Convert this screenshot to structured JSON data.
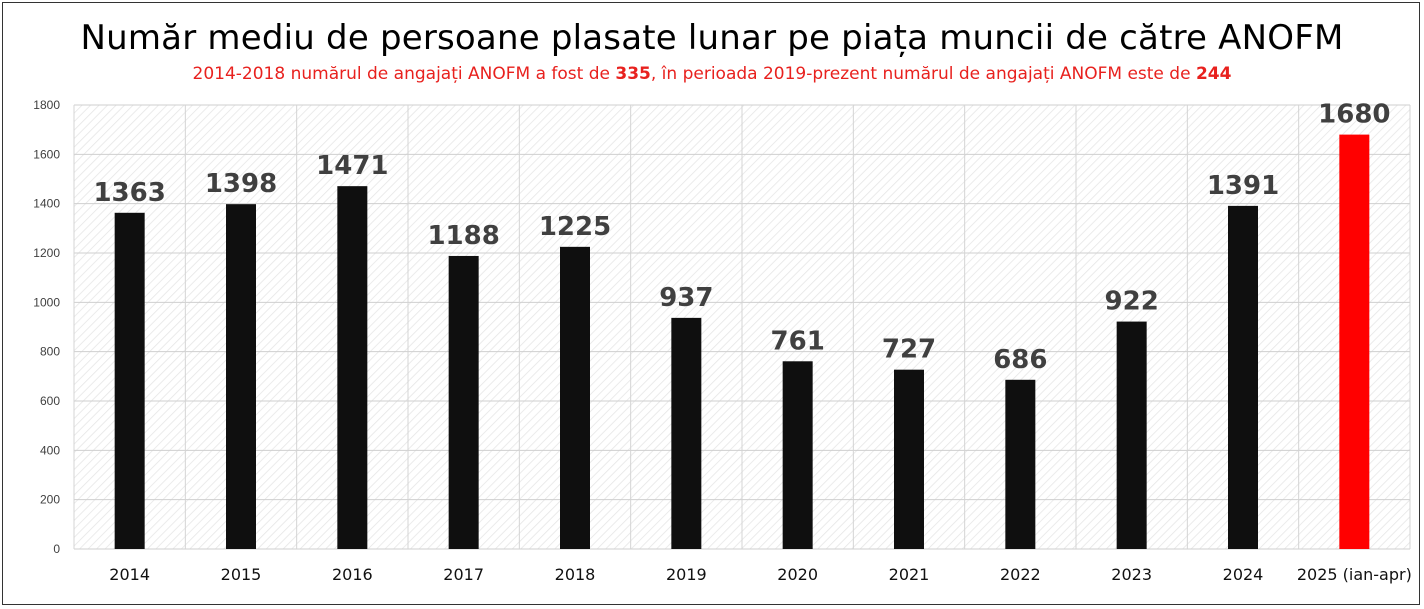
{
  "chart_data": {
    "type": "bar",
    "title": "Număr mediu de persoane plasate lunar pe piața muncii de către ANOFM",
    "subtitle": {
      "part1": "2014-2018 numărul de angajați ANOFM a fost de ",
      "value1": "335",
      "part2": ", în perioada 2019-prezent numărul de angajați ANOFM este de ",
      "value2": "244"
    },
    "categories": [
      "2014",
      "2015",
      "2016",
      "2017",
      "2018",
      "2019",
      "2020",
      "2021",
      "2022",
      "2023",
      "2024",
      "2025 (ian-apr)"
    ],
    "values": [
      1363,
      1398,
      1471,
      1188,
      1225,
      937,
      761,
      727,
      686,
      922,
      1391,
      1680
    ],
    "colors": [
      "#0f0f0f",
      "#0f0f0f",
      "#0f0f0f",
      "#0f0f0f",
      "#0f0f0f",
      "#0f0f0f",
      "#0f0f0f",
      "#0f0f0f",
      "#0f0f0f",
      "#0f0f0f",
      "#0f0f0f",
      "#ff0000"
    ],
    "ylim": [
      0,
      1800
    ],
    "yticks": [
      0,
      200,
      400,
      600,
      800,
      1000,
      1200,
      1400,
      1600,
      1800
    ],
    "grid": true,
    "legend": "none",
    "xlabel": "",
    "ylabel": ""
  },
  "colors": {
    "bar": "#0f0f0f",
    "highlight_bar": "#ff0000",
    "subtitle_text": "#e8211e",
    "data_label": "#404040",
    "plot_background_hatch": "#e6e6e6"
  }
}
